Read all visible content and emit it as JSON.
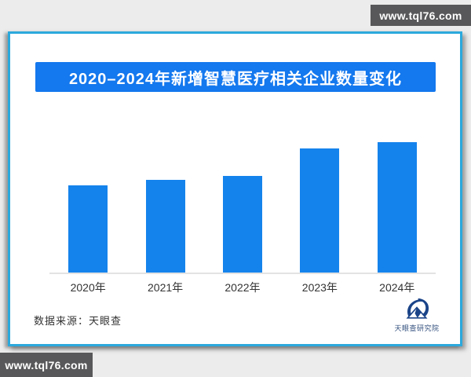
{
  "watermark_top": {
    "text": "www.tql76.com"
  },
  "watermark_bottom": {
    "text": "www.tql76.com"
  },
  "card": {
    "title": "2020–2024年新增智慧医疗相关企业数量变化",
    "source_label": "数据来源：天眼查",
    "logo_text": "天眼查研究院"
  },
  "colors": {
    "page_bg": "#ececec",
    "card_border_cyan": "#2ba9dc",
    "banner_blue": "#1478ee",
    "bar_blue": "#1583ec",
    "watermark_bg": "#58585a",
    "text_dark": "#333333",
    "axis_line": "#e3e3e3",
    "logo_navy": "#1b4488"
  },
  "chart_data": {
    "type": "bar",
    "title": "2020–2024年新增智慧医疗相关企业数量变化",
    "categories": [
      "2020年",
      "2021年",
      "2022年",
      "2023年",
      "2024年"
    ],
    "values": [
      111,
      118,
      123,
      158,
      166
    ],
    "units": "relative bar height (pixel estimate; chart shows no numeric value labels)",
    "value_labels_shown": false,
    "xlabel": "",
    "ylabel": "",
    "ylim": [
      0,
      209
    ],
    "grid": false,
    "legend": false,
    "bar_color": "#1583ec",
    "source": "数据来源：天眼查"
  }
}
